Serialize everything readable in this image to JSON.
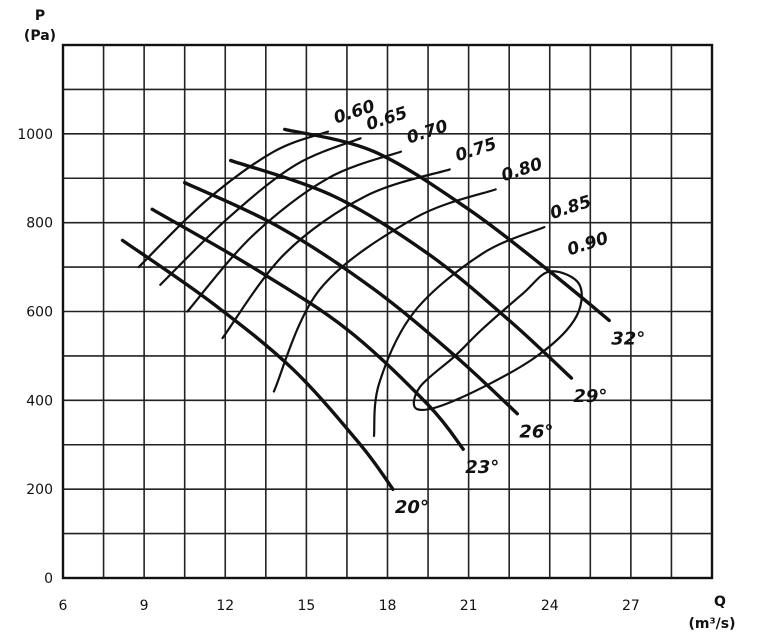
{
  "chart_data": {
    "type": "line",
    "y_axis": {
      "symbol": "P",
      "unit": "(Pa)",
      "ylim": [
        0,
        1200
      ],
      "ticks": [
        "0",
        "200",
        "400",
        "600",
        "800",
        "1000"
      ]
    },
    "x_axis": {
      "symbol": "Q",
      "unit": "(m³/s)",
      "xlim": [
        6,
        30
      ],
      "ticks": [
        "6",
        "9",
        "12",
        "15",
        "18",
        "21",
        "24",
        "27"
      ]
    },
    "grid": true,
    "series": [
      {
        "name": "20°",
        "x": [
          8.2,
          11.5,
          14.5,
          17,
          18.2
        ],
        "y": [
          760,
          620,
          470,
          300,
          200
        ]
      },
      {
        "name": "23°",
        "x": [
          9.3,
          13,
          16.5,
          19.5,
          20.8
        ],
        "y": [
          830,
          700,
          560,
          390,
          290
        ]
      },
      {
        "name": "26°",
        "x": [
          10.5,
          14,
          17.5,
          20.5,
          22.8
        ],
        "y": [
          890,
          790,
          650,
          500,
          370
        ]
      },
      {
        "name": "29°",
        "x": [
          12.2,
          16,
          19.5,
          22.5,
          24.8
        ],
        "y": [
          940,
          860,
          730,
          580,
          450
        ]
      },
      {
        "name": "32°",
        "x": [
          14.2,
          17.5,
          21,
          24,
          26.2
        ],
        "y": [
          1010,
          960,
          830,
          690,
          580
        ]
      }
    ],
    "efficiency_contours": [
      {
        "label": "0.60",
        "x": [
          8.8,
          11.3,
          13.8,
          15.8
        ],
        "y": [
          700,
          850,
          960,
          1005
        ]
      },
      {
        "label": "0.65",
        "x": [
          9.6,
          12.1,
          14.6,
          17
        ],
        "y": [
          660,
          810,
          930,
          990
        ]
      },
      {
        "label": "0.70",
        "x": [
          10.6,
          13,
          15.8,
          18.5
        ],
        "y": [
          600,
          770,
          900,
          960
        ]
      },
      {
        "label": "0.75",
        "x": [
          11.9,
          14.2,
          17.2,
          20.3
        ],
        "y": [
          540,
          730,
          860,
          920
        ]
      },
      {
        "label": "0.80",
        "x": [
          13.8,
          15.5,
          19,
          22
        ],
        "y": [
          420,
          650,
          810,
          875
        ]
      },
      {
        "label": "0.85",
        "x": [
          17.5,
          17.7,
          19,
          21.5,
          23.8
        ],
        "y": [
          320,
          440,
          600,
          730,
          790
        ]
      },
      {
        "label": "0.90",
        "x": [
          24,
          25.1,
          24.9,
          23.3,
          20.5,
          19.1,
          19.2,
          20.5,
          21.5,
          23,
          24
        ],
        "y": [
          690,
          660,
          580,
          490,
          400,
          380,
          430,
          500,
          560,
          640,
          690
        ]
      }
    ]
  }
}
